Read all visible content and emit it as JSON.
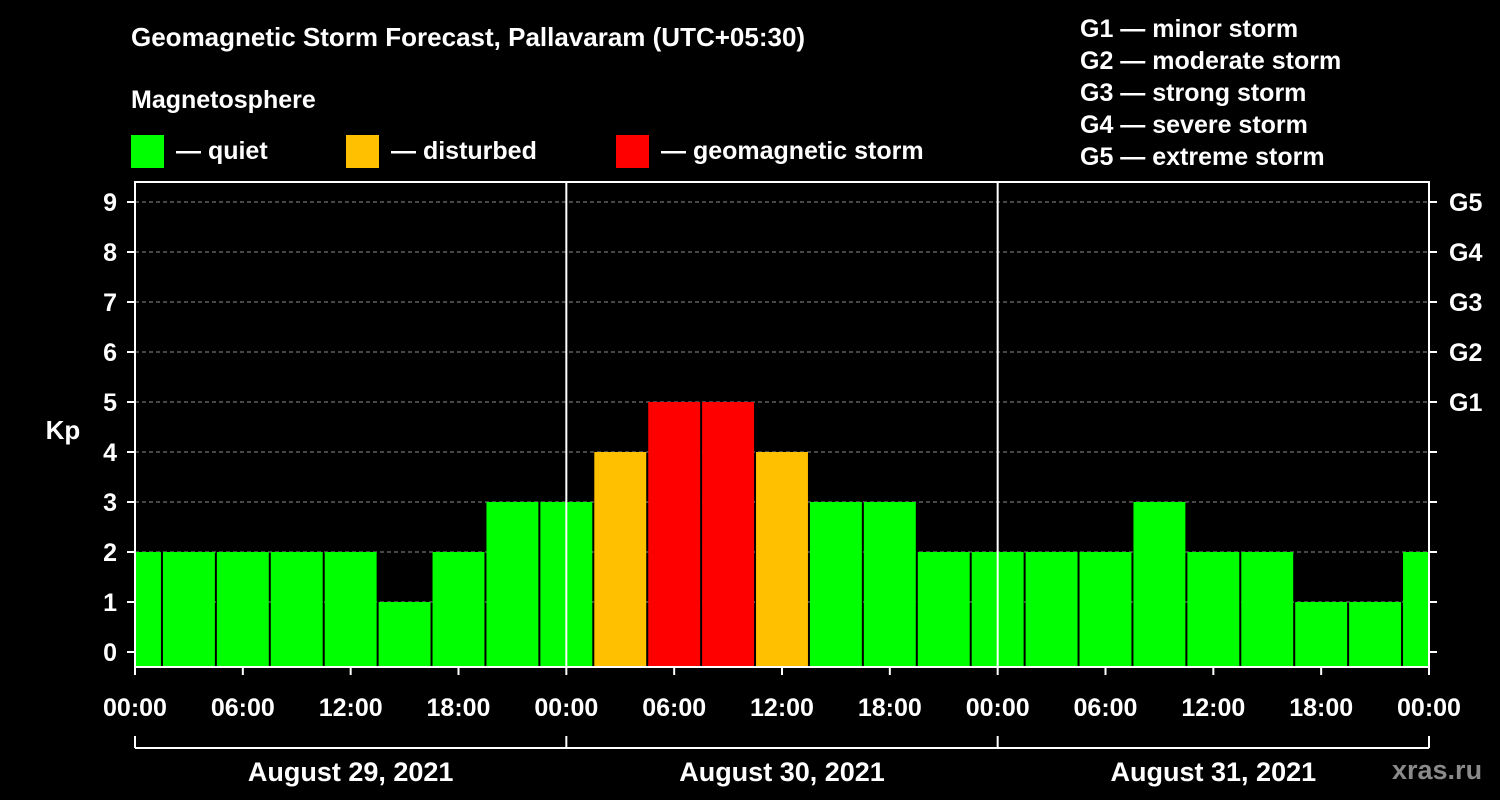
{
  "header": {
    "title": "Geomagnetic Storm Forecast, Pallavaram (UTC+05:30)",
    "subtitle": "Magnetosphere"
  },
  "legend": [
    {
      "label": "— quiet",
      "color": "#00ff00"
    },
    {
      "label": "— disturbed",
      "color": "#ffc000"
    },
    {
      "label": "— geomagnetic storm",
      "color": "#ff0000"
    }
  ],
  "g_legend": [
    "G1 — minor storm",
    "G2 — moderate storm",
    "G3 — strong storm",
    "G4 — severe storm",
    "G5 — extreme storm"
  ],
  "watermark": "xras.ru",
  "colors": {
    "quiet": "#00ff00",
    "disturbed": "#ffc000",
    "storm": "#ff0000",
    "background": "#000000",
    "axis": "#ffffff"
  },
  "chart_data": {
    "type": "bar",
    "ylabel": "Kp",
    "ylim": [
      -0.3,
      9.4
    ],
    "yticks": [
      0,
      1,
      2,
      3,
      4,
      5,
      6,
      7,
      8,
      9
    ],
    "right_ticks": [
      {
        "value": 5,
        "label": "G1"
      },
      {
        "value": 6,
        "label": "G2"
      },
      {
        "value": 7,
        "label": "G3"
      },
      {
        "value": 8,
        "label": "G4"
      },
      {
        "value": 9,
        "label": "G5"
      }
    ],
    "grid": "dashed horizontal",
    "x_hours_range": [
      0,
      72
    ],
    "xtick_labels": [
      "00:00",
      "06:00",
      "12:00",
      "18:00",
      "00:00",
      "06:00",
      "12:00",
      "18:00",
      "00:00",
      "06:00",
      "12:00",
      "18:00",
      "00:00"
    ],
    "days": [
      "August 29, 2021",
      "August 30, 2021",
      "August 31, 2021"
    ],
    "bar_start_hours": [
      -1.5,
      1.5,
      4.5,
      7.5,
      10.5,
      13.5,
      16.5,
      19.5,
      22.5,
      25.5,
      28.5,
      31.5,
      34.5,
      37.5,
      40.5,
      43.5,
      46.5,
      49.5,
      52.5,
      55.5,
      58.5,
      61.5,
      64.5,
      67.5,
      70.5
    ],
    "values": [
      2,
      2,
      2,
      2,
      2,
      1,
      2,
      3,
      3,
      4,
      5,
      5,
      4,
      3,
      3,
      2,
      2,
      2,
      2,
      3,
      2,
      2,
      1,
      1,
      2
    ]
  }
}
